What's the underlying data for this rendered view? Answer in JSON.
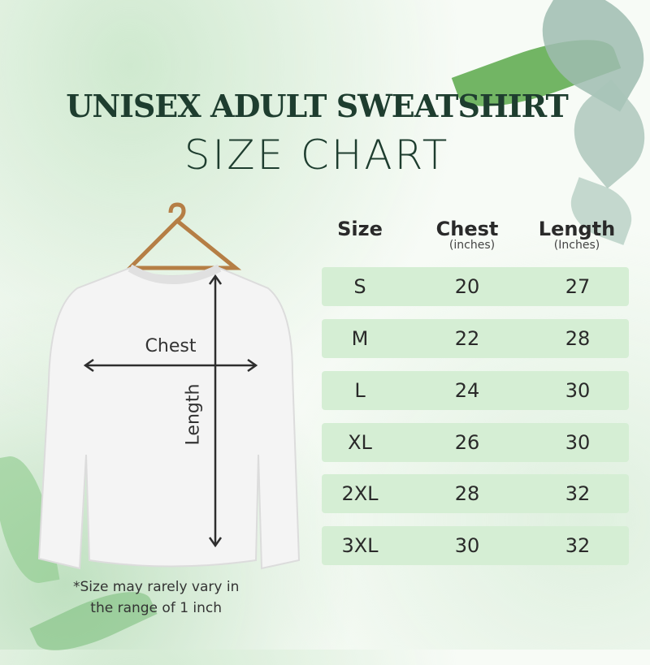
{
  "title": {
    "line1": "UNISEX ADULT SWEATSHIRT",
    "line2": "SIZE CHART"
  },
  "diagram": {
    "chest_label": "Chest",
    "length_label": "Length"
  },
  "table": {
    "headers": [
      {
        "label": "Size",
        "unit": ""
      },
      {
        "label": "Chest",
        "unit": "(inches)"
      },
      {
        "label": "Length",
        "unit": "(Inches)"
      }
    ],
    "rows": [
      {
        "size": "S",
        "chest": "20",
        "length": "27"
      },
      {
        "size": "M",
        "chest": "22",
        "length": "28"
      },
      {
        "size": "L",
        "chest": "24",
        "length": "30"
      },
      {
        "size": "XL",
        "chest": "26",
        "length": "30"
      },
      {
        "size": "2XL",
        "chest": "28",
        "length": "32"
      },
      {
        "size": "3XL",
        "chest": "30",
        "length": "32"
      }
    ]
  },
  "footnote": {
    "line1": "*Size may rarely vary in",
    "line2": "the range of 1 inch"
  },
  "colors": {
    "title": "#1e3d2f",
    "row_fill": "#d5eed4"
  }
}
